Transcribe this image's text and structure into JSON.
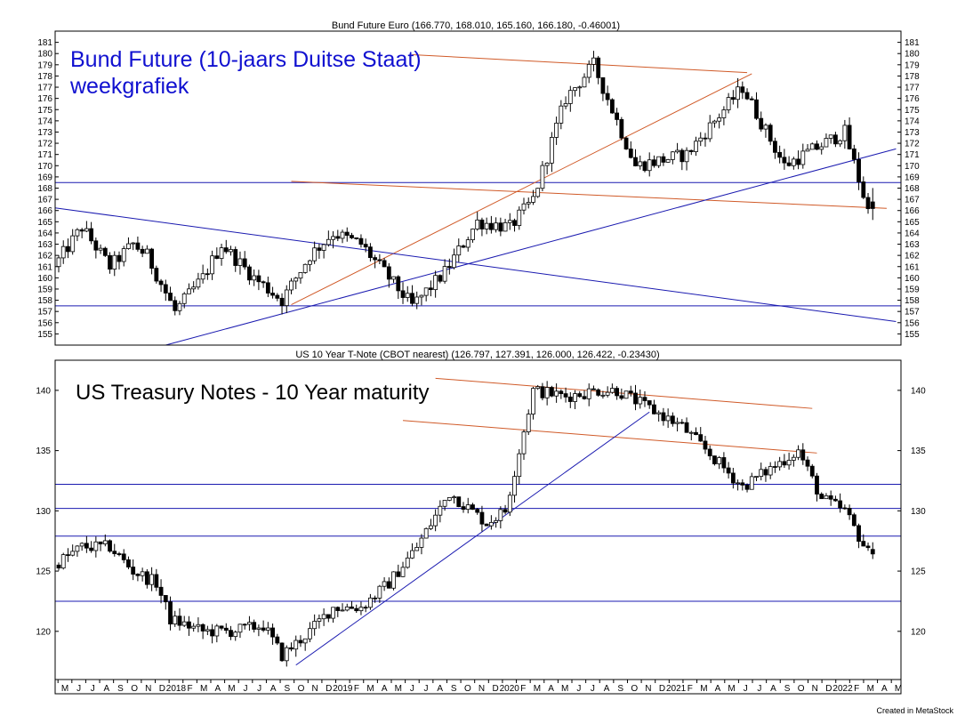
{
  "colors": {
    "background": "#ffffff",
    "candles": "#000000",
    "blue_line": "#1a1ab0",
    "orange_line": "#d05a28",
    "blue_text": "#1010d0"
  },
  "footer": "Created in MetaStock",
  "chart_data": [
    {
      "type": "candlestick",
      "title": "Bund Future Euro (166.770, 168.010, 165.160, 166.180, -0.46001)",
      "annotation": [
        "Bund Future (10-jaars Duitse Staat)",
        "weekgrafiek"
      ],
      "ylim": [
        154,
        182
      ],
      "yticks": [
        155,
        156,
        157,
        158,
        159,
        160,
        161,
        162,
        163,
        164,
        165,
        166,
        167,
        168,
        169,
        170,
        171,
        172,
        173,
        174,
        175,
        176,
        177,
        178,
        179,
        180,
        181
      ],
      "x_anchor_weeks": [
        0,
        6,
        12,
        17,
        20,
        26,
        32,
        36,
        43,
        49,
        55,
        60,
        66,
        70,
        77,
        84,
        91,
        98,
        103,
        110,
        116,
        125,
        136,
        148,
        157,
        170,
        175
      ],
      "x_anchor_values": [
        161,
        164.5,
        161,
        163,
        162,
        157,
        160,
        163,
        160,
        158,
        162,
        164,
        163,
        161,
        157.5,
        160.5,
        165,
        164.5,
        167,
        176,
        179,
        170,
        171,
        177,
        170,
        173,
        166
      ],
      "last": [
        166.77,
        168.01,
        165.16,
        166.18
      ],
      "hlines": [
        168.5,
        157.5
      ],
      "trendlines": [
        {
          "color": "orange",
          "from": [
            76,
            179.9
          ],
          "to": [
            148,
            178.3
          ]
        },
        {
          "color": "orange",
          "from": [
            50,
            168.6
          ],
          "to": [
            178,
            166.2
          ]
        },
        {
          "color": "orange",
          "from": [
            50,
            157.6
          ],
          "to": [
            149,
            178.2
          ]
        },
        {
          "color": "blue",
          "from": [
            -18,
            167.2
          ],
          "to": [
            180,
            156.1
          ]
        },
        {
          "color": "blue",
          "from": [
            23,
            154
          ],
          "to": [
            180,
            171.5
          ]
        }
      ]
    },
    {
      "type": "candlestick",
      "title": "US 10 Year T-Note (CBOT nearest) (126.797, 127.391, 126.000, 126.422, -0.23430)",
      "annotation": [
        "US Treasury Notes - 10 Year maturity"
      ],
      "ylim": [
        116,
        142.5
      ],
      "yticks": [
        120,
        125,
        130,
        135,
        140
      ],
      "x_anchor_weeks": [
        0,
        6,
        12,
        17,
        22,
        25,
        32,
        38,
        45,
        49,
        55,
        60,
        66,
        72,
        78,
        85,
        93,
        97,
        103,
        110,
        117,
        121,
        135,
        148,
        160,
        165,
        170,
        175
      ],
      "x_anchor_values": [
        125.5,
        127,
        127,
        125,
        124,
        121,
        120,
        120,
        120.5,
        118,
        120,
        122,
        122,
        124,
        127,
        131.5,
        129,
        130,
        140,
        139.5,
        140,
        140,
        137,
        132,
        135,
        131,
        130,
        126.5
      ],
      "last": [
        126.797,
        127.391,
        126.0,
        126.422
      ],
      "hlines": [
        132.2,
        130.2,
        127.9,
        122.5
      ],
      "trendlines": [
        {
          "color": "orange",
          "from": [
            81,
            141
          ],
          "to": [
            162,
            138.5
          ]
        },
        {
          "color": "orange",
          "from": [
            74,
            137.5
          ],
          "to": [
            163,
            134.8
          ]
        },
        {
          "color": "blue",
          "from": [
            51,
            117.2
          ],
          "to": [
            127,
            138.2
          ]
        }
      ]
    }
  ],
  "x_axis": {
    "tick_labels": [
      "M",
      "J",
      "J",
      "A",
      "S",
      "O",
      "N",
      "D",
      "2018",
      "F",
      "M",
      "A",
      "M",
      "J",
      "J",
      "A",
      "S",
      "O",
      "N",
      "D",
      "2019",
      "F",
      "M",
      "A",
      "M",
      "J",
      "J",
      "A",
      "S",
      "O",
      "N",
      "D",
      "2020",
      "F",
      "M",
      "A",
      "M",
      "J",
      "J",
      "A",
      "S",
      "O",
      "N",
      "D",
      "2021",
      "F",
      "M",
      "A",
      "M",
      "J",
      "J",
      "A",
      "S",
      "O",
      "N",
      "D",
      "2022",
      "F",
      "M",
      "A",
      "M"
    ]
  }
}
